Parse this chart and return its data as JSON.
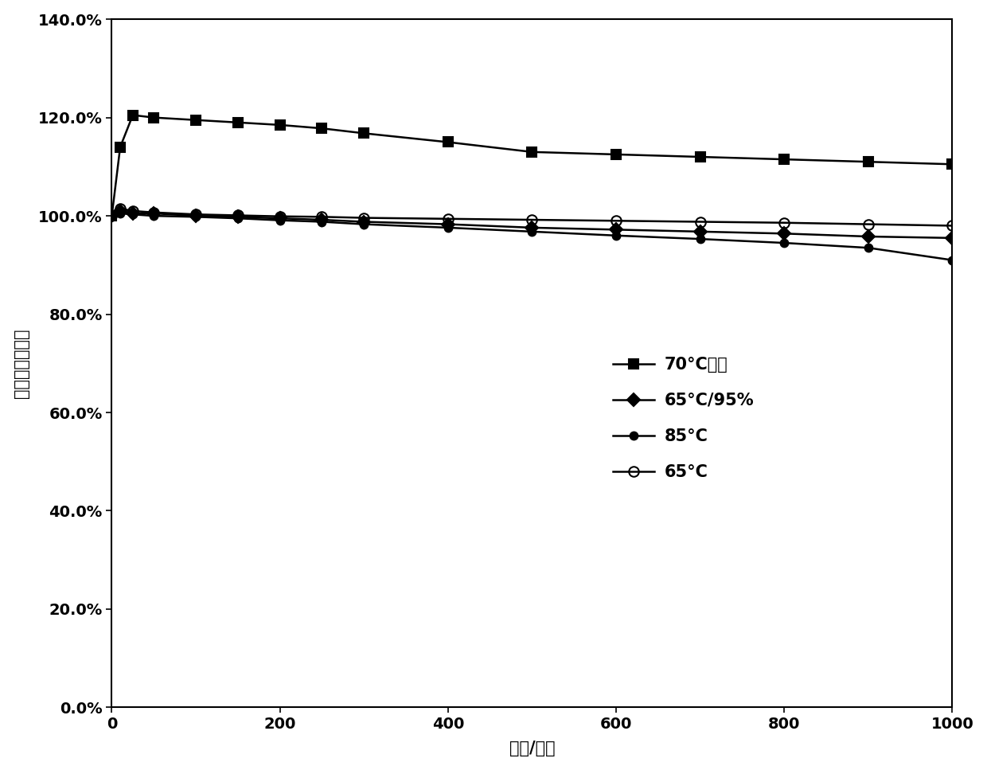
{
  "series": [
    {
      "label": "70°C光照",
      "marker": "s",
      "fillstyle": "full",
      "color": "#000000",
      "x": [
        0,
        10,
        25,
        50,
        100,
        150,
        200,
        250,
        300,
        400,
        500,
        600,
        700,
        800,
        900,
        1000
      ],
      "y": [
        1.0,
        1.14,
        1.205,
        1.2,
        1.195,
        1.19,
        1.185,
        1.178,
        1.168,
        1.15,
        1.13,
        1.125,
        1.12,
        1.115,
        1.11,
        1.105
      ]
    },
    {
      "label": "65°C/95%",
      "marker": "D",
      "fillstyle": "full",
      "color": "#000000",
      "x": [
        0,
        10,
        25,
        50,
        100,
        150,
        200,
        250,
        300,
        400,
        500,
        600,
        700,
        800,
        900,
        1000
      ],
      "y": [
        1.0,
        1.01,
        1.005,
        1.005,
        1.0,
        0.998,
        0.995,
        0.992,
        0.988,
        0.983,
        0.976,
        0.972,
        0.968,
        0.964,
        0.958,
        0.955
      ]
    },
    {
      "label": "85°C",
      "marker": "o",
      "fillstyle": "full",
      "color": "#000000",
      "x": [
        0,
        10,
        25,
        50,
        100,
        150,
        200,
        250,
        300,
        400,
        500,
        600,
        700,
        800,
        900,
        1000
      ],
      "y": [
        1.0,
        1.005,
        1.003,
        1.0,
        0.998,
        0.995,
        0.991,
        0.988,
        0.983,
        0.976,
        0.968,
        0.96,
        0.953,
        0.945,
        0.935,
        0.91
      ]
    },
    {
      "label": "65°C",
      "marker": "o",
      "fillstyle": "none",
      "color": "#000000",
      "x": [
        0,
        10,
        25,
        50,
        100,
        150,
        200,
        250,
        300,
        400,
        500,
        600,
        700,
        800,
        900,
        1000
      ],
      "y": [
        1.0,
        1.015,
        1.01,
        1.007,
        1.003,
        1.001,
        0.999,
        0.998,
        0.996,
        0.994,
        0.992,
        0.99,
        0.988,
        0.986,
        0.983,
        0.98
      ]
    }
  ],
  "xlabel": "时间/小时",
  "ylabel": "效率相对变化率",
  "xlim": [
    0,
    1000
  ],
  "ylim": [
    0.0,
    1.4
  ],
  "xticks": [
    0,
    200,
    400,
    600,
    800,
    1000
  ],
  "yticks": [
    0.0,
    0.2,
    0.4,
    0.6,
    0.8,
    1.0,
    1.2,
    1.4
  ],
  "ytick_labels": [
    "0.0%",
    "20.0%",
    "40.0%",
    "60.0%",
    "80.0%",
    "100.0%",
    "120.0%",
    "140.0%"
  ],
  "figsize": [
    12.4,
    9.67
  ],
  "dpi": 100
}
